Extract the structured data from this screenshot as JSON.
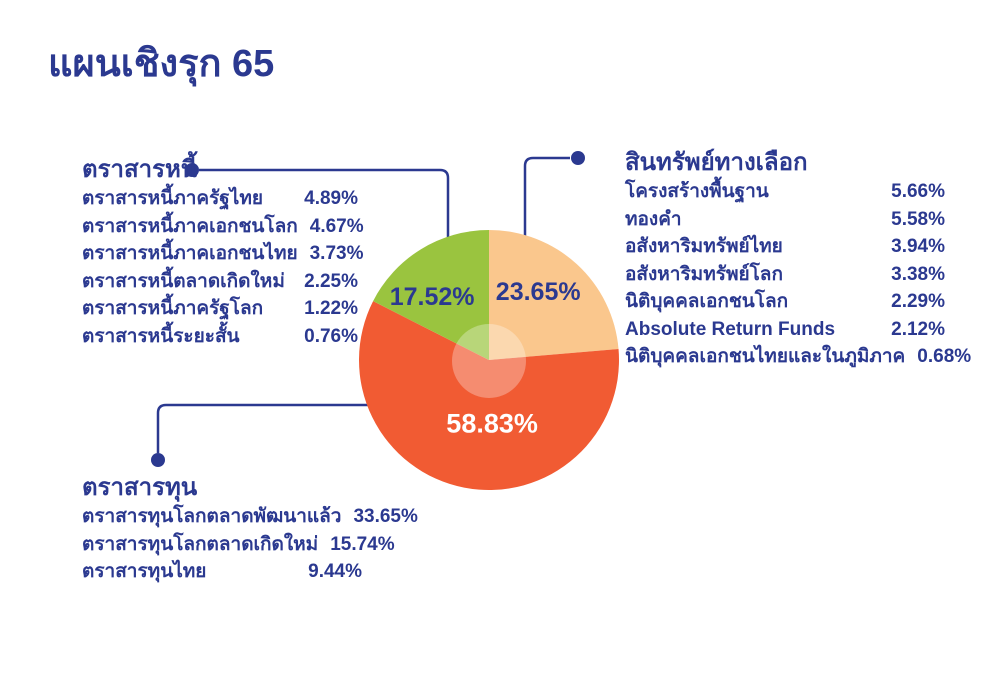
{
  "title": "แผนเชิงรุก 65",
  "colors": {
    "primary_blue": "#2B3990",
    "orange": "#F15B33",
    "peach": "#FAC78D",
    "green": "#9AC43F",
    "background": "#FFFFFF"
  },
  "chart_data": {
    "type": "pie",
    "title": "แผนเชิงรุก 65",
    "start_angle_deg": 0,
    "direction": "clockwise",
    "legend_position": "callout-labels",
    "center_overlay": {
      "shape": "circle",
      "fill": "rgba(255,255,255,0.3)"
    },
    "slices": [
      {
        "name": "สินทรัพย์ทางเลือก",
        "value": 23.65,
        "label": "23.65%",
        "color": "#FAC78D",
        "label_color": "#2B3990"
      },
      {
        "name": "ตราสารทุน",
        "value": 58.83,
        "label": "58.83%",
        "color": "#F15B33",
        "label_color": "#FFFFFF"
      },
      {
        "name": "ตราสารหนี้",
        "value": 17.52,
        "label": "17.52%",
        "color": "#9AC43F",
        "label_color": "#2B3990"
      }
    ]
  },
  "groups": {
    "debt": {
      "header": "ตราสารหนี้",
      "items": [
        {
          "label": "ตราสารหนี้ภาครัฐไทย",
          "value": "4.89%"
        },
        {
          "label": "ตราสารหนี้ภาคเอกชนโลก",
          "value": "4.67%"
        },
        {
          "label": "ตราสารหนี้ภาคเอกชนไทย",
          "value": "3.73%"
        },
        {
          "label": "ตราสารหนี้ตลาดเกิดใหม่",
          "value": "2.25%"
        },
        {
          "label": "ตราสารหนี้ภาครัฐโลก",
          "value": "1.22%"
        },
        {
          "label": "ตราสารหนี้ระยะสั้น",
          "value": "0.76%"
        }
      ]
    },
    "alternative": {
      "header": "สินทรัพย์ทางเลือก",
      "items": [
        {
          "label": "โครงสร้างพื้นฐาน",
          "value": "5.66%"
        },
        {
          "label": "ทองคำ",
          "value": "5.58%"
        },
        {
          "label": "อสังหาริมทรัพย์ไทย",
          "value": "3.94%"
        },
        {
          "label": "อสังหาริมทรัพย์โลก",
          "value": "3.38%"
        },
        {
          "label": "นิติบุคคลเอกชนโลก",
          "value": "2.29%"
        },
        {
          "label": "Absolute Return Funds",
          "value": "2.12%"
        },
        {
          "label": "นิติบุคคลเอกชนไทยและในภูมิภาค",
          "value": "0.68%"
        }
      ]
    },
    "equity": {
      "header": "ตราสารทุน",
      "items": [
        {
          "label": "ตราสารทุนโลกตลาดพัฒนาแล้ว",
          "value": "33.65%"
        },
        {
          "label": "ตราสารทุนโลกตลาดเกิดใหม่",
          "value": "15.74%"
        },
        {
          "label": "ตราสารทุนไทย",
          "value": "9.44%"
        }
      ]
    }
  }
}
